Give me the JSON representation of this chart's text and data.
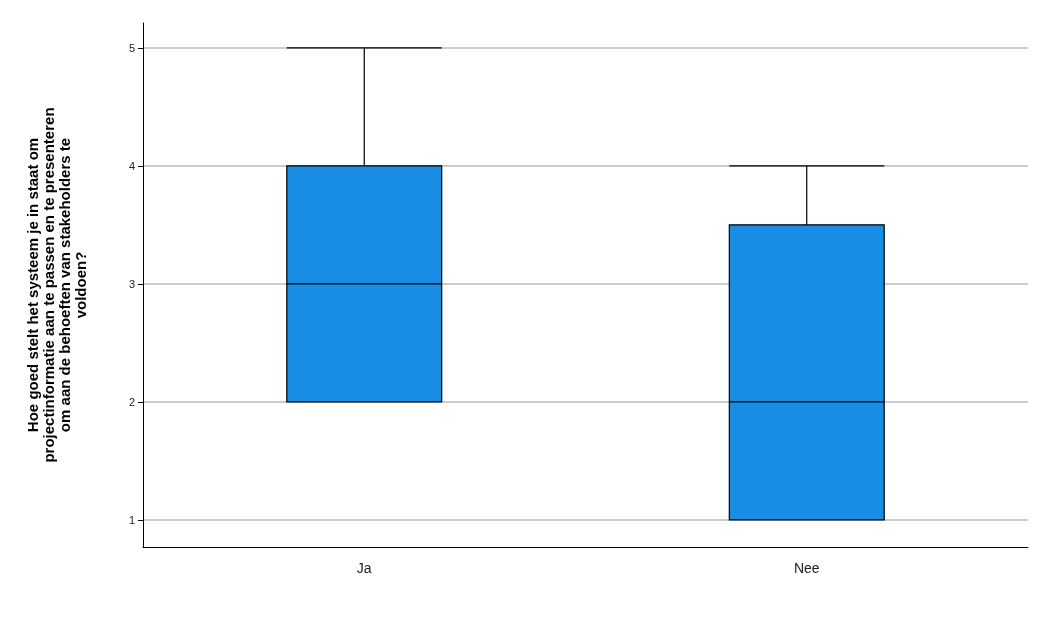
{
  "chart_data": {
    "type": "box",
    "ylabel": "Hoe goed stelt het systeem je in staat om\nprojectinformatie aan te passen en te presenteren\nom aan de behoeften van stakeholders te\nvoldoen?",
    "categories": [
      "Ja",
      "Nee"
    ],
    "boxes": [
      {
        "low": 2,
        "q1": 2,
        "median": 3,
        "q3": 4,
        "high": 5
      },
      {
        "low": 1,
        "q1": 1,
        "median": 2,
        "q3": 3.5,
        "high": 4
      }
    ],
    "color": "#1a8de4",
    "ylim": [
      0.77,
      5.21
    ],
    "yticks": [
      1,
      2,
      3,
      4,
      5
    ],
    "grid": "y"
  }
}
